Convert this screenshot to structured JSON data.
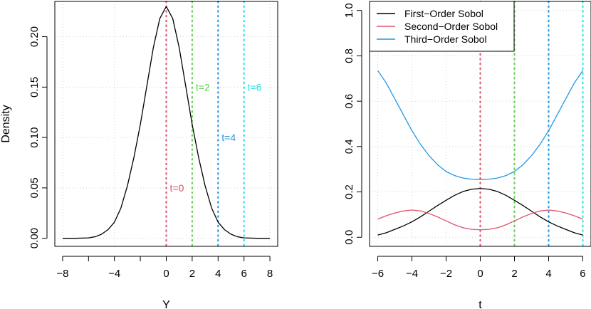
{
  "chart_data": [
    {
      "type": "line",
      "title": "",
      "xlabel": "Y",
      "ylabel": "Density",
      "xlim": [
        -8.6,
        8.6
      ],
      "ylim": [
        -0.008,
        0.235
      ],
      "xticks": [
        -8,
        -4,
        0,
        2,
        4,
        6,
        8
      ],
      "xtick_labels": [
        "−8",
        "−4",
        "0",
        "2",
        "4",
        "6",
        "8"
      ],
      "xticks_unlabeled": [
        -6,
        -2
      ],
      "yticks": [
        0.0,
        0.05,
        0.1,
        0.15,
        0.2
      ],
      "ytick_labels": [
        "0.00",
        "0.05",
        "0.10",
        "0.15",
        "0.20"
      ],
      "grid": true,
      "series": [
        {
          "color": "#000000",
          "x": [
            -8,
            -7,
            -6,
            -5.5,
            -5,
            -4.5,
            -4,
            -3.5,
            -3,
            -2.5,
            -2,
            -1.5,
            -1,
            -0.5,
            0,
            0.5,
            1,
            1.5,
            2,
            2.5,
            3,
            3.5,
            4,
            4.5,
            5,
            5.5,
            6,
            7,
            8
          ],
          "values": [
            0.0,
            0.0,
            0.0004,
            0.0015,
            0.004,
            0.0085,
            0.016,
            0.03,
            0.052,
            0.08,
            0.113,
            0.151,
            0.189,
            0.218,
            0.23,
            0.218,
            0.189,
            0.151,
            0.113,
            0.08,
            0.052,
            0.03,
            0.016,
            0.0085,
            0.004,
            0.0015,
            0.0004,
            0.0,
            0.0
          ]
        }
      ],
      "vlines": [
        {
          "x": 0,
          "label": "t=0",
          "label_y": 0.05,
          "color": "#DF536B"
        },
        {
          "x": 2,
          "label": "t=2",
          "label_y": 0.15,
          "color": "#61D04F"
        },
        {
          "x": 4,
          "label": "t=4",
          "label_y": 0.1,
          "color": "#2297E6"
        },
        {
          "x": 6,
          "label": "t=6",
          "label_y": 0.15,
          "color": "#28E2E5"
        }
      ]
    },
    {
      "type": "line",
      "title": "",
      "xlabel": "t",
      "ylabel": "",
      "xlim": [
        -6.48,
        6.48
      ],
      "ylim": [
        -0.04,
        1.04
      ],
      "xticks": [
        -6,
        -4,
        -2,
        0,
        2,
        4,
        6
      ],
      "xtick_labels": [
        "−6",
        "−4",
        "−2",
        "0",
        "2",
        "4",
        "6"
      ],
      "yticks": [
        0.0,
        0.2,
        0.4,
        0.6,
        0.8,
        1.0
      ],
      "ytick_labels": [
        "0.0",
        "0.2",
        "0.4",
        "0.6",
        "0.8",
        "1.0"
      ],
      "grid": true,
      "legend_position": "top-left",
      "x": [
        -6,
        -5.5,
        -5,
        -4.5,
        -4,
        -3.5,
        -3,
        -2.5,
        -2,
        -1.5,
        -1,
        -0.5,
        0,
        0.5,
        1,
        1.5,
        2,
        2.5,
        3,
        3.5,
        4,
        4.5,
        5,
        5.5,
        6
      ],
      "series": [
        {
          "name": "First−Order Sobol",
          "color": "#000000",
          "values": [
            0.01,
            0.02,
            0.035,
            0.05,
            0.068,
            0.09,
            0.115,
            0.14,
            0.163,
            0.185,
            0.202,
            0.212,
            0.215,
            0.212,
            0.202,
            0.185,
            0.163,
            0.14,
            0.115,
            0.09,
            0.068,
            0.05,
            0.035,
            0.02,
            0.01
          ]
        },
        {
          "name": "Second−Order Sobol",
          "color": "#DF536B",
          "values": [
            0.08,
            0.095,
            0.107,
            0.116,
            0.12,
            0.116,
            0.105,
            0.09,
            0.072,
            0.055,
            0.042,
            0.035,
            0.033,
            0.035,
            0.042,
            0.055,
            0.072,
            0.09,
            0.105,
            0.116,
            0.12,
            0.116,
            0.107,
            0.095,
            0.08
          ]
        },
        {
          "name": "Third−Order Sobol",
          "color": "#2297E6",
          "values": [
            0.735,
            0.68,
            0.61,
            0.54,
            0.47,
            0.41,
            0.36,
            0.32,
            0.29,
            0.272,
            0.261,
            0.256,
            0.255,
            0.256,
            0.261,
            0.272,
            0.29,
            0.32,
            0.36,
            0.41,
            0.47,
            0.54,
            0.61,
            0.68,
            0.735
          ]
        }
      ],
      "vlines": [
        {
          "x": 0,
          "color": "#DF536B"
        },
        {
          "x": 2,
          "color": "#61D04F"
        },
        {
          "x": 4,
          "color": "#2297E6"
        },
        {
          "x": 6,
          "color": "#28E2E5"
        }
      ]
    }
  ]
}
